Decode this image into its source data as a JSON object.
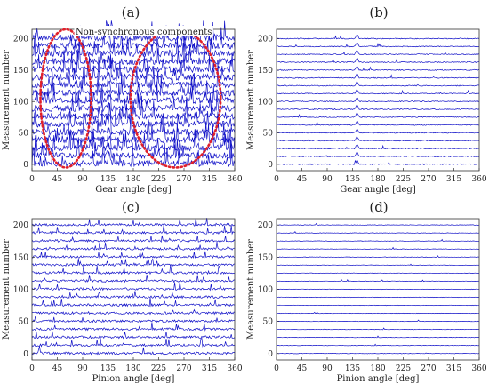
{
  "chart_data": [
    {
      "type": "line",
      "panel": "(a)",
      "xlabel": "Gear angle [deg]",
      "ylabel": "Measurement number",
      "xlim": [
        0,
        360
      ],
      "ylim": [
        -10,
        215
      ],
      "xticks": [
        0,
        45,
        90,
        135,
        180,
        225,
        270,
        315,
        360
      ],
      "yticks": [
        0,
        50,
        100,
        150,
        200
      ],
      "series_count": 17,
      "series_offsets": [
        0,
        12.5,
        25,
        37.5,
        50,
        62.5,
        75,
        87.5,
        100,
        112.5,
        125,
        137.5,
        150,
        162.5,
        175,
        187.5,
        200
      ],
      "peak_at_deg": 137,
      "noise_level": "high",
      "annotation": "Non-synchronous components",
      "highlights": [
        {
          "shape": "ellipse",
          "style": "dotted",
          "x_range_deg": [
            15,
            105
          ],
          "y_range": [
            -5,
            215
          ]
        },
        {
          "shape": "ellipse",
          "style": "dotted",
          "x_range_deg": [
            175,
            335
          ],
          "y_range": [
            -5,
            215
          ]
        }
      ]
    },
    {
      "type": "line",
      "panel": "(b)",
      "xlabel": "Gear angle [deg]",
      "ylabel": "Measurement number",
      "xlim": [
        0,
        360
      ],
      "ylim": [
        -10,
        215
      ],
      "xticks": [
        0,
        45,
        90,
        135,
        180,
        225,
        270,
        315,
        360
      ],
      "yticks": [
        0,
        50,
        100,
        150,
        200
      ],
      "series_count": 17,
      "series_offsets": [
        0,
        12.5,
        25,
        37.5,
        50,
        62.5,
        75,
        87.5,
        100,
        112.5,
        125,
        137.5,
        150,
        162.5,
        175,
        187.5,
        200
      ],
      "peak_at_deg": 143,
      "noise_level": "low"
    },
    {
      "type": "line",
      "panel": "(c)",
      "xlabel": "Pinion angle [deg]",
      "ylabel": "Measurement number",
      "xlim": [
        0,
        360
      ],
      "ylim": [
        -10,
        210
      ],
      "xticks": [
        0,
        45,
        90,
        135,
        180,
        225,
        270,
        315,
        360
      ],
      "yticks": [
        0,
        50,
        100,
        150,
        200
      ],
      "series_count": 17,
      "series_offsets": [
        0,
        12.5,
        25,
        37.5,
        50,
        62.5,
        75,
        87.5,
        100,
        112.5,
        125,
        137.5,
        150,
        162.5,
        175,
        187.5,
        200
      ],
      "peak_at_deg": null,
      "noise_level": "medium"
    },
    {
      "type": "line",
      "panel": "(d)",
      "xlabel": "Pinion angle [deg]",
      "ylabel": "Measurement number",
      "xlim": [
        0,
        360
      ],
      "ylim": [
        -10,
        210
      ],
      "xticks": [
        0,
        45,
        90,
        135,
        180,
        225,
        270,
        315,
        360
      ],
      "yticks": [
        0,
        50,
        100,
        150,
        200
      ],
      "series_count": 17,
      "series_offsets": [
        0,
        12.5,
        25,
        37.5,
        50,
        62.5,
        75,
        87.5,
        100,
        112.5,
        125,
        137.5,
        150,
        162.5,
        175,
        187.5,
        200
      ],
      "peak_at_deg": null,
      "noise_level": "minimal"
    }
  ],
  "colors": {
    "trace": "#1010c8",
    "highlight": "#e0202a",
    "axis": "#333333"
  }
}
